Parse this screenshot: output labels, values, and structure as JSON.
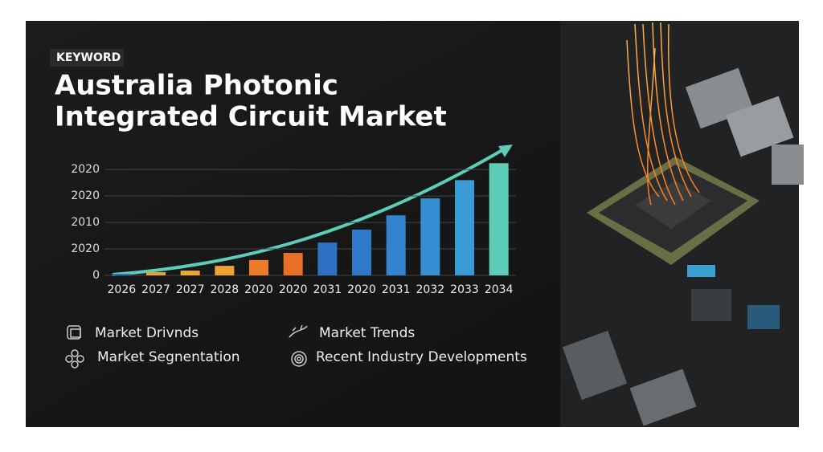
{
  "chart_data": {
    "type": "bar",
    "badge": "KEYWORD",
    "title_lines": [
      "Australia Photonic",
      "Integrated Circuit Market"
    ],
    "categories": [
      "2026",
      "2027",
      "2027",
      "2028",
      "2020",
      "2020",
      "2031",
      "2020",
      "2031",
      "2032",
      "2033",
      "2034"
    ],
    "values": [
      0.06,
      0.12,
      0.18,
      0.36,
      0.58,
      0.85,
      1.24,
      1.73,
      2.27,
      2.91,
      3.6,
      4.24
    ],
    "colors": [
      "#2f6fb8",
      "#e8a530",
      "#eba932",
      "#eda431",
      "#ec7b2a",
      "#ea6f26",
      "#2f70c2",
      "#3079c8",
      "#3384cd",
      "#368fd2",
      "#3a9ad6",
      "#5ccdb8"
    ],
    "ylim": [
      0,
      4.4
    ],
    "yticks": [
      0,
      {
        "value": 1,
        "label": "2020"
      },
      {
        "value": 2,
        "label": "2010"
      },
      {
        "value": 3,
        "label": "2020"
      },
      {
        "value": 4,
        "label": "2020"
      }
    ],
    "grid": true,
    "features": [
      "Market Drivnds",
      "Market Trends",
      "Market Segnentation",
      "Recent Industry Developments"
    ]
  }
}
